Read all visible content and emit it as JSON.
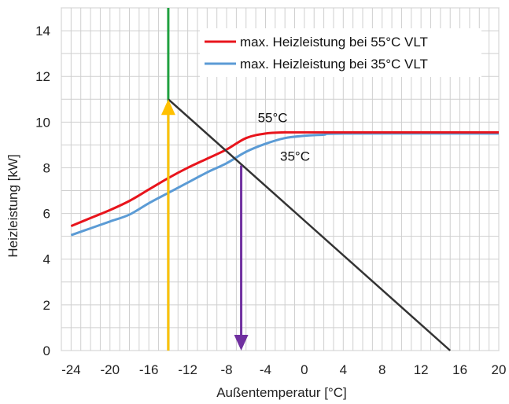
{
  "chart_data": {
    "type": "line",
    "title": "",
    "xlabel": "Außentemperatur [°C]",
    "ylabel": "Heizleistung [kW]",
    "xlim": [
      -25,
      20
    ],
    "ylim": [
      0,
      15
    ],
    "x_ticks": [
      -24,
      -20,
      -16,
      -12,
      -8,
      -4,
      0,
      4,
      8,
      12,
      16,
      20
    ],
    "y_ticks": [
      0,
      2,
      4,
      6,
      8,
      10,
      12,
      14
    ],
    "grid": true,
    "legend_position": "top-right",
    "series": [
      {
        "name": "max. Heizleistung bei 55°C VLT",
        "color": "#e8141c",
        "points": [
          [
            -24,
            5.45
          ],
          [
            -22,
            5.8
          ],
          [
            -20,
            6.15
          ],
          [
            -18,
            6.55
          ],
          [
            -16,
            7.05
          ],
          [
            -14,
            7.55
          ],
          [
            -12,
            8.0
          ],
          [
            -10,
            8.4
          ],
          [
            -8,
            8.8
          ],
          [
            -6,
            9.3
          ],
          [
            -4,
            9.5
          ],
          [
            -2,
            9.55
          ],
          [
            0,
            9.55
          ],
          [
            20,
            9.55
          ]
        ]
      },
      {
        "name": "max. Heizleistung bei 35°C VLT",
        "color": "#5b9bd5",
        "points": [
          [
            -24,
            5.05
          ],
          [
            -22,
            5.35
          ],
          [
            -20,
            5.65
          ],
          [
            -18,
            5.95
          ],
          [
            -16,
            6.45
          ],
          [
            -14,
            6.9
          ],
          [
            -12,
            7.35
          ],
          [
            -10,
            7.8
          ],
          [
            -8,
            8.2
          ],
          [
            -6,
            8.7
          ],
          [
            -4,
            9.05
          ],
          [
            -2,
            9.3
          ],
          [
            0,
            9.4
          ],
          [
            2,
            9.45
          ],
          [
            4,
            9.5
          ],
          [
            20,
            9.5
          ]
        ]
      }
    ],
    "heating_load_line": {
      "color": "#333333",
      "points": [
        [
          -14,
          11.0
        ],
        [
          15,
          0
        ]
      ]
    },
    "vertical_line": {
      "x": -14,
      "color": "#20a040"
    },
    "arrow_up": {
      "x": -14,
      "from": 0,
      "to": 11.0,
      "color": "#ffc000"
    },
    "arrow_down": {
      "x": -6.5,
      "from": 8.1,
      "to": 0,
      "color": "#7030a0"
    },
    "annotations": [
      {
        "text": "55°C",
        "x": -4.8,
        "y": 10.0
      },
      {
        "text": "35°C",
        "x": -2.5,
        "y": 8.3
      }
    ]
  }
}
